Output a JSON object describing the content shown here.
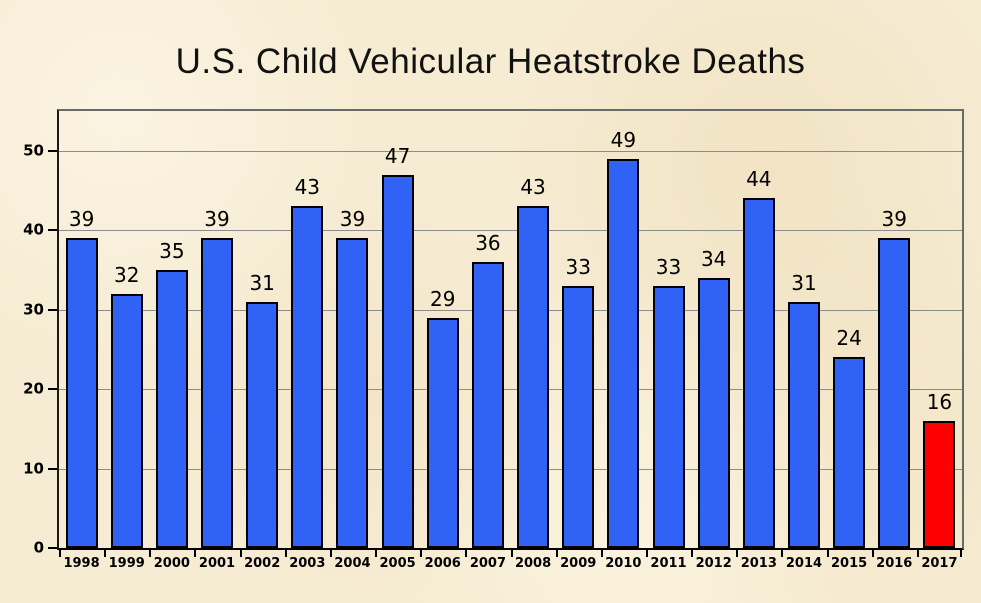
{
  "title": "U.S. Child Vehicular Heatstroke Deaths",
  "chart_data": {
    "type": "bar",
    "title": "U.S. Child Vehicular Heatstroke Deaths",
    "categories": [
      "1998",
      "1999",
      "2000",
      "2001",
      "2002",
      "2003",
      "2004",
      "2005",
      "2006",
      "2007",
      "2008",
      "2009",
      "2010",
      "2011",
      "2012",
      "2013",
      "2014",
      "2015",
      "2016",
      "2017"
    ],
    "values": [
      39,
      32,
      35,
      39,
      31,
      43,
      39,
      47,
      29,
      36,
      43,
      33,
      49,
      33,
      34,
      44,
      31,
      24,
      39,
      16
    ],
    "data_labels": [
      39,
      32,
      35,
      39,
      31,
      43,
      39,
      47,
      29,
      36,
      43,
      33,
      49,
      33,
      34,
      44,
      31,
      24,
      39,
      16
    ],
    "xlabel": "",
    "ylabel": "",
    "ylim": [
      0,
      55
    ],
    "yticks": [
      0,
      10,
      20,
      30,
      40,
      50
    ],
    "grid": true,
    "legend": "none",
    "highlight_category": "2017"
  },
  "colors": {
    "background": "#F6ECD3",
    "bar_default": "#2F62F5",
    "bar_highlight": "#FE0000",
    "bar_outline": "#000000",
    "gridline": "#8C8C8C",
    "plot_border": "#6A6A6A",
    "axis": "#000000",
    "text": "#000000"
  }
}
